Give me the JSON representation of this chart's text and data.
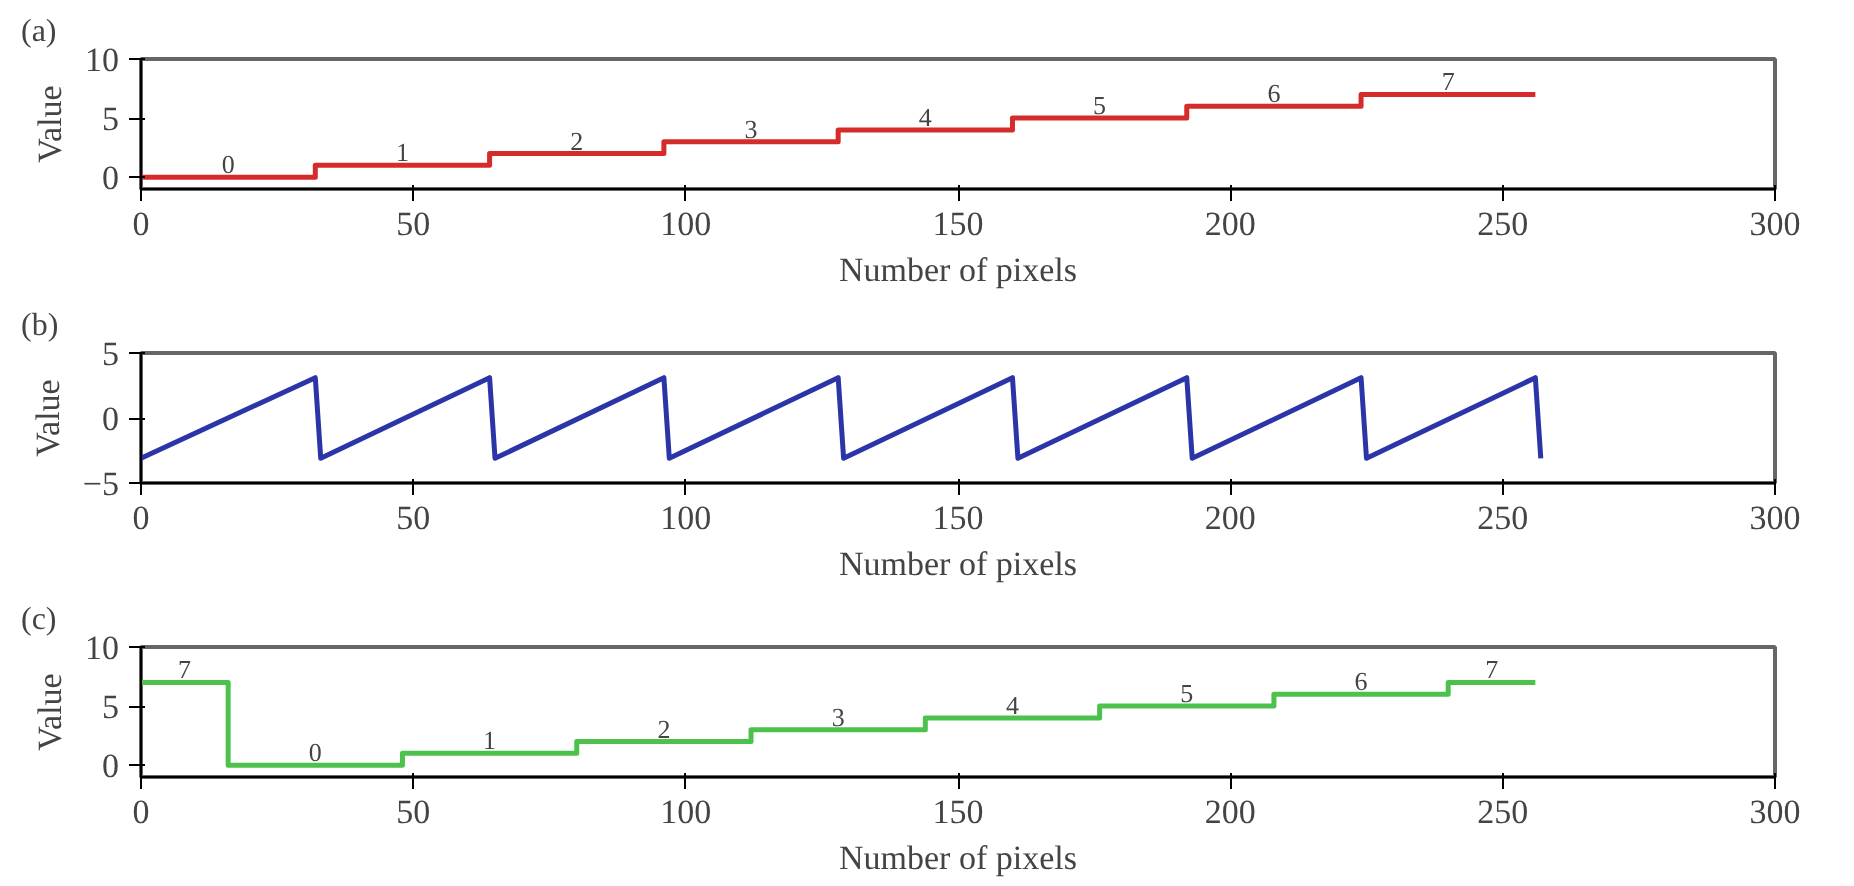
{
  "chart_data": [
    {
      "type": "step",
      "title": "(a)",
      "xlabel": "Number of pixels",
      "ylabel": "Value",
      "x": [
        0,
        32,
        64,
        96,
        128,
        160,
        192,
        224,
        256
      ],
      "series": [
        {
          "color": "#d62b2b",
          "values": [
            0,
            1,
            2,
            3,
            4,
            5,
            6,
            7,
            7
          ]
        }
      ],
      "xlim": [
        0,
        300
      ],
      "xticks": [
        0,
        50,
        100,
        150,
        200,
        250,
        300
      ],
      "ylim": [
        -1,
        10
      ],
      "yticks": [
        0,
        5,
        10
      ],
      "grid": false,
      "annotations": [
        {
          "text": "0",
          "x": 16,
          "y": 0
        },
        {
          "text": "1",
          "x": 48,
          "y": 1
        },
        {
          "text": "2",
          "x": 80,
          "y": 2
        },
        {
          "text": "3",
          "x": 112,
          "y": 3
        },
        {
          "text": "4",
          "x": 144,
          "y": 4
        },
        {
          "text": "5",
          "x": 176,
          "y": 5
        },
        {
          "text": "6",
          "x": 208,
          "y": 6
        },
        {
          "text": "7",
          "x": 240,
          "y": 7
        }
      ]
    },
    {
      "type": "line",
      "title": "(b)",
      "xlabel": "Number of pixels",
      "ylabel": "Value",
      "x": [
        0,
        32,
        33,
        64,
        65,
        96,
        97,
        128,
        129,
        160,
        161,
        192,
        193,
        224,
        225,
        256,
        257
      ],
      "series": [
        {
          "color": "#2b35a8",
          "values": [
            -3.1,
            3.1,
            -3.1,
            3.1,
            -3.1,
            3.1,
            -3.1,
            3.1,
            -3.1,
            3.1,
            -3.1,
            3.1,
            -3.1,
            3.1,
            -3.1,
            3.1,
            -3.1
          ]
        }
      ],
      "xlim": [
        0,
        300
      ],
      "xticks": [
        0,
        50,
        100,
        150,
        200,
        250,
        300
      ],
      "ylim": [
        -5,
        5
      ],
      "yticks": [
        {
          "value": -5,
          "label": "−5"
        },
        0,
        5
      ],
      "grid": false
    },
    {
      "type": "step",
      "title": "(c)",
      "xlabel": "Number of pixels",
      "ylabel": "Value",
      "x": [
        0,
        16,
        48,
        80,
        112,
        144,
        176,
        208,
        240,
        256
      ],
      "series": [
        {
          "color": "#4cc24c",
          "values": [
            7,
            0,
            1,
            2,
            3,
            4,
            5,
            6,
            7,
            7
          ]
        }
      ],
      "xlim": [
        0,
        300
      ],
      "xticks": [
        0,
        50,
        100,
        150,
        200,
        250,
        300
      ],
      "ylim": [
        -1,
        10
      ],
      "yticks": [
        0,
        5,
        10
      ],
      "grid": false,
      "annotations": [
        {
          "text": "7",
          "x": 8,
          "y": 7
        },
        {
          "text": "0",
          "x": 32,
          "y": 0
        },
        {
          "text": "1",
          "x": 64,
          "y": 1
        },
        {
          "text": "2",
          "x": 96,
          "y": 2
        },
        {
          "text": "3",
          "x": 128,
          "y": 3
        },
        {
          "text": "4",
          "x": 160,
          "y": 4
        },
        {
          "text": "5",
          "x": 192,
          "y": 5
        },
        {
          "text": "6",
          "x": 224,
          "y": 6
        },
        {
          "text": "7",
          "x": 248,
          "y": 7
        }
      ]
    }
  ]
}
